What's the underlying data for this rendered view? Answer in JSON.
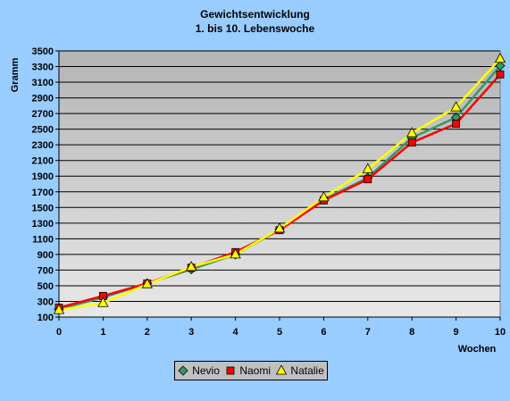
{
  "chart_data": {
    "type": "line",
    "title": "Gewichtsentwicklung",
    "subtitle": "1. bis 10. Lebenswoche",
    "ylabel": "Gramm",
    "xlabel": "Wochen",
    "x": [
      0,
      1,
      2,
      3,
      4,
      5,
      6,
      7,
      8,
      9,
      10
    ],
    "ylim": [
      100,
      3500
    ],
    "xlim": [
      0,
      10
    ],
    "yticks": [
      100,
      300,
      500,
      700,
      900,
      1100,
      1300,
      1500,
      1700,
      1900,
      2100,
      2300,
      2500,
      2700,
      2900,
      3100,
      3300,
      3500
    ],
    "grid": true,
    "legend_position": "bottom",
    "series": [
      {
        "name": "Nevio",
        "color": "#339966",
        "marker": "diamond",
        "values": [
          200,
          350,
          530,
          710,
          900,
          1220,
          1600,
          1880,
          2390,
          2650,
          3310
        ]
      },
      {
        "name": "Naomi",
        "color": "#ff0000",
        "marker": "square",
        "values": [
          220,
          370,
          530,
          730,
          930,
          1210,
          1590,
          1860,
          2330,
          2570,
          3200
        ]
      },
      {
        "name": "Natalie",
        "color": "#ffff00",
        "marker": "triangle",
        "values": [
          190,
          280,
          520,
          740,
          900,
          1230,
          1630,
          1990,
          2450,
          2780,
          3400
        ]
      }
    ]
  }
}
